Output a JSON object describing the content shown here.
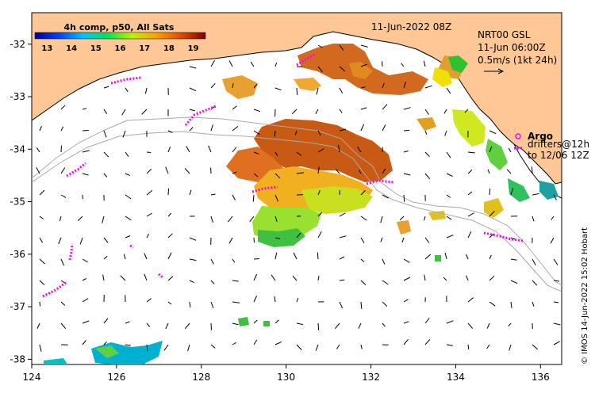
{
  "map": {
    "date_label": "11-Jun-2022 08Z",
    "current_source": "NRT00 GSL",
    "current_time": "11-Jun 06:00Z",
    "scale_label": "0.5m/s (1kt 24h)",
    "argo_label": "Argo",
    "drifters_label_1": "drifters@12h",
    "drifters_label_2": "to 12/06 12Z",
    "credit": "© IMOS 14-Jun-2022 15:02 Hobart",
    "colors": {
      "land": "#fdc896",
      "ocean": "#ffffff",
      "drifter": "#ff00ff"
    }
  },
  "colorbar": {
    "title": "4h comp, p50, All Sats",
    "ticks": [
      "13",
      "14",
      "15",
      "16",
      "17",
      "18",
      "19"
    ],
    "range": [
      12.5,
      19.5
    ]
  },
  "axes": {
    "x_ticks": [
      "124",
      "126",
      "128",
      "130",
      "132",
      "134",
      "136"
    ],
    "y_ticks": [
      "-32",
      "-33",
      "-34",
      "-35",
      "-36",
      "-37",
      "-38"
    ],
    "x_range": [
      124,
      136.5
    ],
    "y_range": [
      -38.1,
      -31.4
    ]
  }
}
